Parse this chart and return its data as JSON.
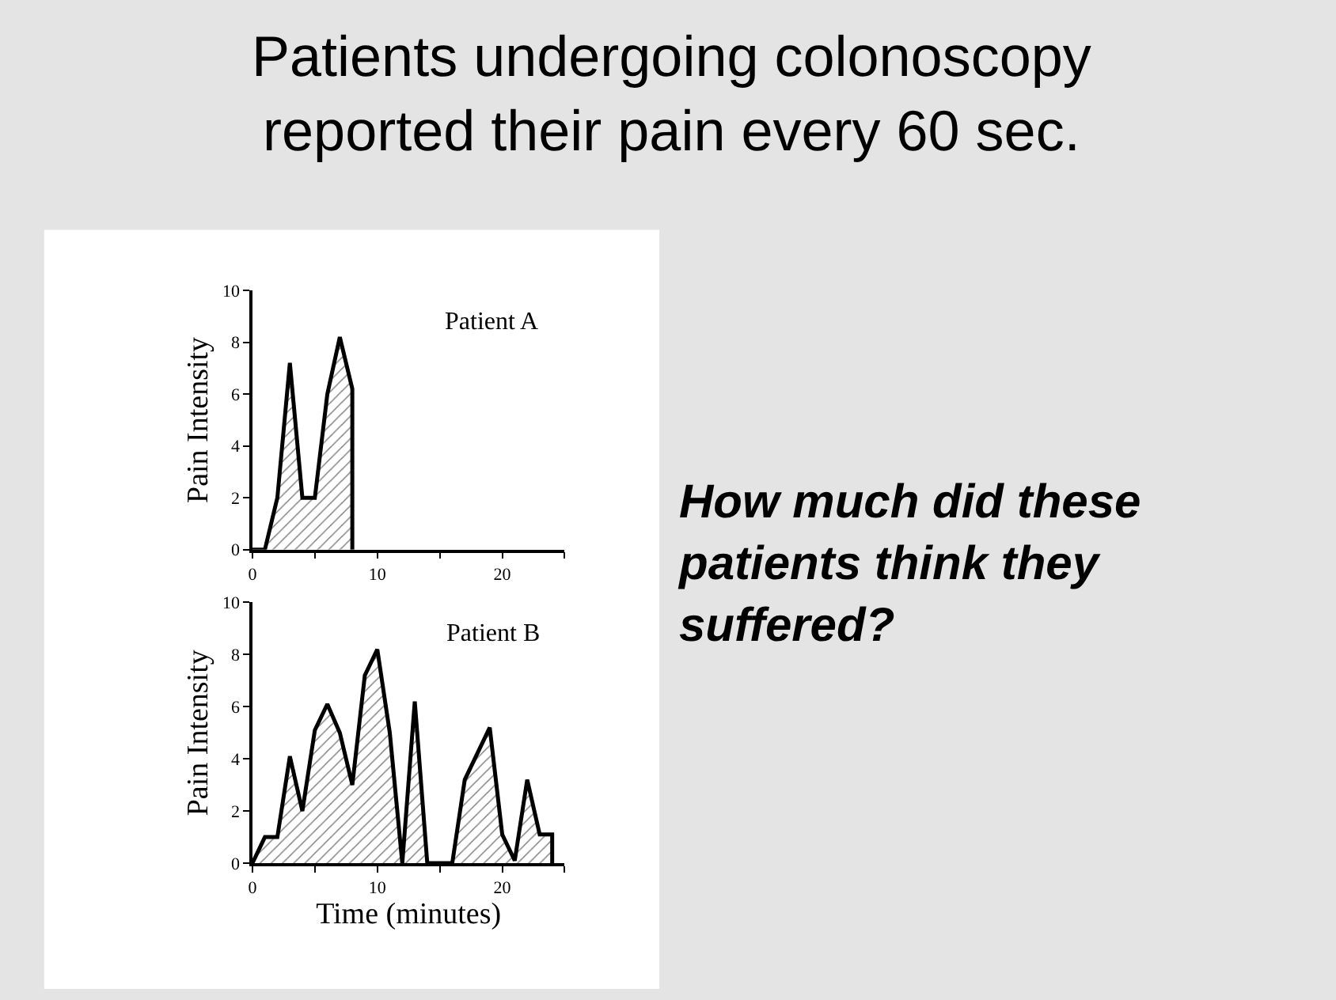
{
  "chart_data": [
    {
      "type": "area",
      "title": "Patients undergoing colonoscopy\nreported their pain every 60 sec.",
      "ylabel": "Pain Intensity",
      "xlim": [
        0,
        25
      ],
      "xticks": [
        0,
        {
          "value": 5,
          "label": null
        },
        10,
        {
          "value": 15,
          "label": null
        },
        20,
        {
          "value": 25,
          "label": null
        }
      ],
      "ylim": [
        0,
        10
      ],
      "yticks": [
        0,
        2,
        4,
        6,
        8,
        10
      ],
      "series": [
        {
          "name": "Patient A",
          "color": "#000000",
          "x": [
            0,
            1,
            2,
            3,
            4,
            5,
            6,
            7,
            8,
            8
          ],
          "values": [
            0,
            0,
            2,
            7.2,
            2,
            2,
            6,
            8.2,
            6.2,
            0
          ]
        }
      ]
    },
    {
      "type": "area",
      "xlabel": "Time (minutes)",
      "ylabel": "Pain Intensity",
      "xlim": [
        0,
        25
      ],
      "xticks": [
        0,
        {
          "value": 5,
          "label": null
        },
        10,
        {
          "value": 15,
          "label": null
        },
        20,
        {
          "value": 25,
          "label": null
        }
      ],
      "ylim": [
        0,
        10
      ],
      "yticks": [
        0,
        2,
        4,
        6,
        8,
        10
      ],
      "series": [
        {
          "name": "Patient B",
          "color": "#000000",
          "x": [
            0,
            1,
            2,
            3,
            4,
            5,
            6,
            7,
            8,
            9,
            10,
            11,
            12,
            13,
            14,
            15,
            16,
            17,
            18,
            19,
            20,
            21,
            22,
            23,
            24,
            24
          ],
          "values": [
            0,
            1,
            1,
            4.1,
            2,
            5.1,
            6.1,
            5,
            3,
            7.2,
            8.2,
            5,
            0,
            6.2,
            0,
            0,
            0,
            3.2,
            4.2,
            5.2,
            1.1,
            0.1,
            3.2,
            1.1,
            1.1,
            0
          ]
        }
      ]
    },
    {
      "type": "other",
      "annotations": [
        "How much did these patients think they suffered?"
      ]
    }
  ]
}
